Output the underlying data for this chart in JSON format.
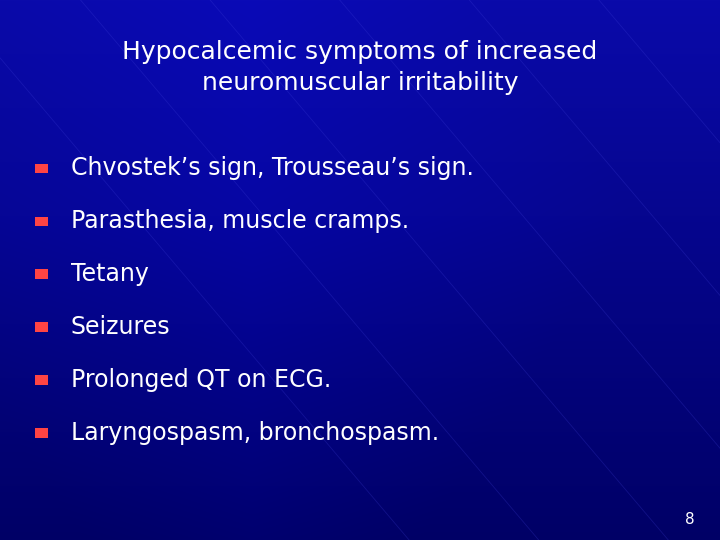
{
  "title_line1": "Hypocalcemic symptoms of increased",
  "title_line2": "neuromuscular irritability",
  "bullet_items": [
    "Chvostek’s sign, Trousseau’s sign.",
    "Parasthesia, muscle cramps.",
    "Tetany",
    "Seizures",
    "Prolonged QT on ECG.",
    "Laryngospasm, bronchospasm."
  ],
  "background_color": "#0000AA",
  "bg_gradient_top": "#0a0a99",
  "bg_gradient_bottom": "#000066",
  "title_color": "#FFFFFF",
  "bullet_text_color": "#FFFFFF",
  "bullet_marker_color": "#FF4444",
  "page_number": "8",
  "page_number_color": "#FFFFFF",
  "title_fontsize": 18,
  "bullet_fontsize": 17,
  "page_number_fontsize": 11
}
